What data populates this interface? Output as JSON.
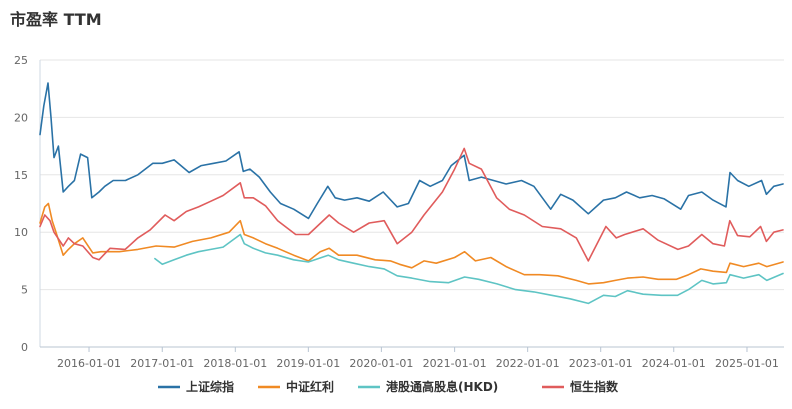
{
  "chart_data": {
    "type": "line",
    "title": "市盈率 TTM",
    "xlabel": "",
    "ylabel": "",
    "ylim": [
      0,
      25
    ],
    "yticks": [
      0,
      5,
      10,
      15,
      20,
      25
    ],
    "xticks": [
      "2016-01-01",
      "2017-01-01",
      "2018-01-01",
      "2019-01-01",
      "2020-01-01",
      "2021-01-01",
      "2022-01-01",
      "2023-01-01",
      "2024-01-01",
      "2025-01-01"
    ],
    "grid": true,
    "legend_position": "bottom",
    "series": [
      {
        "name": "上证综指",
        "color": "#2a72a6",
        "points": [
          [
            "2015-05-01",
            18.5
          ],
          [
            "2015-05-20",
            21.0
          ],
          [
            "2015-06-10",
            23.0
          ],
          [
            "2015-06-25",
            20.0
          ],
          [
            "2015-07-10",
            16.5
          ],
          [
            "2015-08-01",
            17.5
          ],
          [
            "2015-08-25",
            13.5
          ],
          [
            "2015-09-20",
            14.0
          ],
          [
            "2015-10-20",
            14.5
          ],
          [
            "2015-11-20",
            16.8
          ],
          [
            "2015-12-25",
            16.5
          ],
          [
            "2016-01-15",
            13.0
          ],
          [
            "2016-02-20",
            13.5
          ],
          [
            "2016-03-20",
            14.0
          ],
          [
            "2016-05-01",
            14.5
          ],
          [
            "2016-07-01",
            14.5
          ],
          [
            "2016-09-01",
            15.0
          ],
          [
            "2016-11-15",
            16.0
          ],
          [
            "2017-01-01",
            16.0
          ],
          [
            "2017-03-01",
            16.3
          ],
          [
            "2017-05-15",
            15.2
          ],
          [
            "2017-07-15",
            15.8
          ],
          [
            "2017-09-15",
            16.0
          ],
          [
            "2017-11-15",
            16.2
          ],
          [
            "2018-01-20",
            17.0
          ],
          [
            "2018-02-10",
            15.3
          ],
          [
            "2018-03-15",
            15.5
          ],
          [
            "2018-05-01",
            14.8
          ],
          [
            "2018-06-25",
            13.5
          ],
          [
            "2018-08-15",
            12.5
          ],
          [
            "2018-10-20",
            12.0
          ],
          [
            "2019-01-02",
            11.2
          ],
          [
            "2019-02-15",
            12.5
          ],
          [
            "2019-04-08",
            14.0
          ],
          [
            "2019-05-15",
            13.0
          ],
          [
            "2019-07-01",
            12.8
          ],
          [
            "2019-09-01",
            13.0
          ],
          [
            "2019-11-01",
            12.7
          ],
          [
            "2020-01-10",
            13.5
          ],
          [
            "2020-03-20",
            12.2
          ],
          [
            "2020-05-15",
            12.5
          ],
          [
            "2020-07-10",
            14.5
          ],
          [
            "2020-09-01",
            14.0
          ],
          [
            "2020-11-01",
            14.5
          ],
          [
            "2020-12-15",
            15.8
          ],
          [
            "2021-02-18",
            16.7
          ],
          [
            "2021-03-15",
            14.5
          ],
          [
            "2021-05-15",
            14.8
          ],
          [
            "2021-07-15",
            14.5
          ],
          [
            "2021-09-15",
            14.2
          ],
          [
            "2021-12-01",
            14.5
          ],
          [
            "2022-02-01",
            14.0
          ],
          [
            "2022-04-26",
            12.0
          ],
          [
            "2022-06-15",
            13.3
          ],
          [
            "2022-08-15",
            12.8
          ],
          [
            "2022-10-31",
            11.6
          ],
          [
            "2023-01-15",
            12.8
          ],
          [
            "2023-03-15",
            13.0
          ],
          [
            "2023-05-10",
            13.5
          ],
          [
            "2023-07-15",
            13.0
          ],
          [
            "2023-09-15",
            13.2
          ],
          [
            "2023-11-15",
            12.9
          ],
          [
            "2024-02-05",
            12.0
          ],
          [
            "2024-03-15",
            13.2
          ],
          [
            "2024-05-20",
            13.5
          ],
          [
            "2024-07-15",
            12.8
          ],
          [
            "2024-09-18",
            12.2
          ],
          [
            "2024-10-08",
            15.2
          ],
          [
            "2024-11-15",
            14.5
          ],
          [
            "2025-01-10",
            14.0
          ],
          [
            "2025-03-15",
            14.5
          ],
          [
            "2025-04-08",
            13.3
          ],
          [
            "2025-05-15",
            14.0
          ],
          [
            "2025-06-30",
            14.2
          ]
        ]
      },
      {
        "name": "中证红利",
        "color": "#f08a24",
        "points": [
          [
            "2015-05-01",
            10.8
          ],
          [
            "2015-05-25",
            12.2
          ],
          [
            "2015-06-12",
            12.5
          ],
          [
            "2015-07-01",
            11.0
          ],
          [
            "2015-07-20",
            10.0
          ],
          [
            "2015-08-25",
            8.0
          ],
          [
            "2015-09-20",
            8.5
          ],
          [
            "2015-10-20",
            9.0
          ],
          [
            "2015-12-01",
            9.5
          ],
          [
            "2016-01-20",
            8.2
          ],
          [
            "2016-03-01",
            8.3
          ],
          [
            "2016-06-01",
            8.3
          ],
          [
            "2016-09-01",
            8.5
          ],
          [
            "2016-12-01",
            8.8
          ],
          [
            "2017-03-01",
            8.7
          ],
          [
            "2017-06-01",
            9.2
          ],
          [
            "2017-09-01",
            9.5
          ],
          [
            "2017-12-01",
            10.0
          ],
          [
            "2018-01-26",
            11.0
          ],
          [
            "2018-02-15",
            9.8
          ],
          [
            "2018-04-01",
            9.5
          ],
          [
            "2018-06-01",
            9.0
          ],
          [
            "2018-08-01",
            8.6
          ],
          [
            "2018-10-20",
            8.0
          ],
          [
            "2019-01-02",
            7.5
          ],
          [
            "2019-03-01",
            8.3
          ],
          [
            "2019-04-15",
            8.6
          ],
          [
            "2019-06-01",
            8.0
          ],
          [
            "2019-09-01",
            8.0
          ],
          [
            "2019-12-01",
            7.6
          ],
          [
            "2020-02-15",
            7.5
          ],
          [
            "2020-04-01",
            7.2
          ],
          [
            "2020-06-01",
            6.9
          ],
          [
            "2020-08-01",
            7.5
          ],
          [
            "2020-10-01",
            7.3
          ],
          [
            "2021-01-01",
            7.8
          ],
          [
            "2021-02-20",
            8.3
          ],
          [
            "2021-04-15",
            7.5
          ],
          [
            "2021-07-01",
            7.8
          ],
          [
            "2021-09-15",
            7.0
          ],
          [
            "2021-12-15",
            6.3
          ],
          [
            "2022-03-01",
            6.3
          ],
          [
            "2022-06-01",
            6.2
          ],
          [
            "2022-09-01",
            5.8
          ],
          [
            "2022-11-01",
            5.5
          ],
          [
            "2023-01-15",
            5.6
          ],
          [
            "2023-03-15",
            5.8
          ],
          [
            "2023-05-15",
            6.0
          ],
          [
            "2023-08-01",
            6.1
          ],
          [
            "2023-10-15",
            5.9
          ],
          [
            "2024-01-15",
            5.9
          ],
          [
            "2024-03-15",
            6.3
          ],
          [
            "2024-05-15",
            6.8
          ],
          [
            "2024-07-15",
            6.6
          ],
          [
            "2024-09-20",
            6.5
          ],
          [
            "2024-10-08",
            7.3
          ],
          [
            "2024-12-15",
            7.0
          ],
          [
            "2025-03-01",
            7.3
          ],
          [
            "2025-04-10",
            7.0
          ],
          [
            "2025-06-30",
            7.4
          ]
        ]
      },
      {
        "name": "港股通高股息(HKD)",
        "color": "#5ec4c4",
        "points": [
          [
            "2016-11-25",
            7.7
          ],
          [
            "2017-01-01",
            7.2
          ],
          [
            "2017-03-01",
            7.6
          ],
          [
            "2017-05-01",
            8.0
          ],
          [
            "2017-07-01",
            8.3
          ],
          [
            "2017-09-01",
            8.5
          ],
          [
            "2017-11-01",
            8.7
          ],
          [
            "2018-01-26",
            9.8
          ],
          [
            "2018-02-15",
            9.0
          ],
          [
            "2018-04-01",
            8.6
          ],
          [
            "2018-06-01",
            8.2
          ],
          [
            "2018-08-01",
            8.0
          ],
          [
            "2018-10-20",
            7.6
          ],
          [
            "2019-01-01",
            7.4
          ],
          [
            "2019-04-10",
            8.0
          ],
          [
            "2019-06-01",
            7.6
          ],
          [
            "2019-08-15",
            7.3
          ],
          [
            "2019-11-01",
            7.0
          ],
          [
            "2020-01-15",
            6.8
          ],
          [
            "2020-03-20",
            6.2
          ],
          [
            "2020-06-01",
            6.0
          ],
          [
            "2020-09-01",
            5.7
          ],
          [
            "2020-12-01",
            5.6
          ],
          [
            "2021-02-20",
            6.1
          ],
          [
            "2021-05-01",
            5.9
          ],
          [
            "2021-08-01",
            5.5
          ],
          [
            "2021-11-01",
            5.0
          ],
          [
            "2022-02-01",
            4.8
          ],
          [
            "2022-05-01",
            4.5
          ],
          [
            "2022-08-01",
            4.2
          ],
          [
            "2022-10-31",
            3.8
          ],
          [
            "2023-01-15",
            4.5
          ],
          [
            "2023-03-15",
            4.4
          ],
          [
            "2023-05-15",
            4.9
          ],
          [
            "2023-08-01",
            4.6
          ],
          [
            "2023-11-01",
            4.5
          ],
          [
            "2024-01-20",
            4.5
          ],
          [
            "2024-03-15",
            5.0
          ],
          [
            "2024-05-20",
            5.8
          ],
          [
            "2024-07-15",
            5.5
          ],
          [
            "2024-09-20",
            5.6
          ],
          [
            "2024-10-08",
            6.3
          ],
          [
            "2024-12-15",
            6.0
          ],
          [
            "2025-03-01",
            6.3
          ],
          [
            "2025-04-10",
            5.8
          ],
          [
            "2025-06-30",
            6.4
          ]
        ]
      },
      {
        "name": "恒生指数",
        "color": "#e05c5c",
        "points": [
          [
            "2015-05-01",
            10.5
          ],
          [
            "2015-05-25",
            11.5
          ],
          [
            "2015-06-20",
            11.0
          ],
          [
            "2015-07-10",
            10.0
          ],
          [
            "2015-08-25",
            8.8
          ],
          [
            "2015-09-20",
            9.5
          ],
          [
            "2015-10-20",
            9.0
          ],
          [
            "2015-12-01",
            8.8
          ],
          [
            "2016-01-20",
            7.8
          ],
          [
            "2016-02-20",
            7.6
          ],
          [
            "2016-04-15",
            8.6
          ],
          [
            "2016-06-30",
            8.5
          ],
          [
            "2016-09-01",
            9.5
          ],
          [
            "2016-11-01",
            10.2
          ],
          [
            "2017-01-15",
            11.5
          ],
          [
            "2017-03-01",
            11.0
          ],
          [
            "2017-05-01",
            11.8
          ],
          [
            "2017-07-01",
            12.2
          ],
          [
            "2017-09-01",
            12.7
          ],
          [
            "2017-11-01",
            13.2
          ],
          [
            "2018-01-26",
            14.3
          ],
          [
            "2018-02-15",
            13.0
          ],
          [
            "2018-04-01",
            13.0
          ],
          [
            "2018-06-01",
            12.3
          ],
          [
            "2018-08-01",
            11.0
          ],
          [
            "2018-10-30",
            9.8
          ],
          [
            "2019-01-02",
            9.8
          ],
          [
            "2019-04-15",
            11.5
          ],
          [
            "2019-06-01",
            10.8
          ],
          [
            "2019-08-15",
            10.0
          ],
          [
            "2019-11-01",
            10.8
          ],
          [
            "2020-01-15",
            11.0
          ],
          [
            "2020-03-20",
            9.0
          ],
          [
            "2020-06-01",
            10.0
          ],
          [
            "2020-08-01",
            11.5
          ],
          [
            "2020-11-01",
            13.5
          ],
          [
            "2021-01-01",
            15.5
          ],
          [
            "2021-02-18",
            17.3
          ],
          [
            "2021-03-15",
            16.0
          ],
          [
            "2021-05-15",
            15.5
          ],
          [
            "2021-07-30",
            13.0
          ],
          [
            "2021-10-01",
            12.0
          ],
          [
            "2021-12-15",
            11.5
          ],
          [
            "2022-03-15",
            10.5
          ],
          [
            "2022-06-15",
            10.3
          ],
          [
            "2022-09-01",
            9.5
          ],
          [
            "2022-10-31",
            7.5
          ],
          [
            "2023-01-27",
            10.5
          ],
          [
            "2023-03-20",
            9.5
          ],
          [
            "2023-05-01",
            9.8
          ],
          [
            "2023-08-01",
            10.3
          ],
          [
            "2023-10-15",
            9.3
          ],
          [
            "2024-01-22",
            8.5
          ],
          [
            "2024-03-15",
            8.8
          ],
          [
            "2024-05-20",
            9.8
          ],
          [
            "2024-07-15",
            9.0
          ],
          [
            "2024-09-10",
            8.8
          ],
          [
            "2024-10-07",
            11.0
          ],
          [
            "2024-11-15",
            9.7
          ],
          [
            "2025-01-15",
            9.6
          ],
          [
            "2025-03-10",
            10.5
          ],
          [
            "2025-04-08",
            9.2
          ],
          [
            "2025-05-15",
            10.0
          ],
          [
            "2025-06-30",
            10.2
          ]
        ]
      }
    ]
  }
}
